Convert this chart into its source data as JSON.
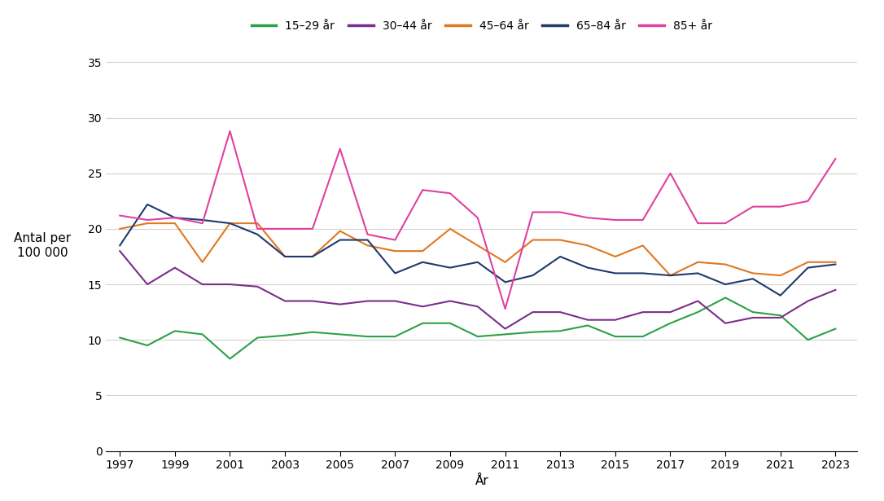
{
  "years": [
    1997,
    1998,
    1999,
    2000,
    2001,
    2002,
    2003,
    2004,
    2005,
    2006,
    2007,
    2008,
    2009,
    2010,
    2011,
    2012,
    2013,
    2014,
    2015,
    2016,
    2017,
    2018,
    2019,
    2020,
    2021,
    2022,
    2023
  ],
  "series": {
    "15–29 år": [
      10.2,
      9.5,
      10.8,
      10.5,
      8.3,
      10.2,
      10.4,
      10.7,
      10.5,
      10.3,
      10.3,
      11.5,
      11.5,
      10.3,
      10.5,
      10.7,
      10.8,
      11.3,
      10.3,
      10.3,
      11.5,
      12.5,
      13.8,
      12.5,
      12.2,
      10.0,
      11.0
    ],
    "30–44 år": [
      18.0,
      15.0,
      16.5,
      15.0,
      15.0,
      14.8,
      13.5,
      13.5,
      13.2,
      13.5,
      13.5,
      13.0,
      13.5,
      13.0,
      11.0,
      12.5,
      12.5,
      11.8,
      11.8,
      12.5,
      12.5,
      13.5,
      11.5,
      12.0,
      12.0,
      13.5,
      14.5
    ],
    "45–64 år": [
      20.0,
      20.5,
      20.5,
      17.0,
      20.5,
      20.5,
      17.5,
      17.5,
      19.8,
      18.5,
      18.0,
      18.0,
      20.0,
      18.5,
      17.0,
      19.0,
      19.0,
      18.5,
      17.5,
      18.5,
      15.8,
      17.0,
      16.8,
      16.0,
      15.8,
      17.0,
      17.0
    ],
    "65–84 år": [
      18.5,
      22.2,
      21.0,
      20.8,
      20.5,
      19.5,
      17.5,
      17.5,
      19.0,
      19.0,
      16.0,
      17.0,
      16.5,
      17.0,
      15.2,
      15.8,
      17.5,
      16.5,
      16.0,
      16.0,
      15.8,
      16.0,
      15.0,
      15.5,
      14.0,
      16.5,
      16.8
    ],
    "85+ år": [
      21.2,
      20.8,
      21.0,
      20.5,
      28.8,
      20.0,
      20.0,
      20.0,
      27.2,
      19.5,
      19.0,
      23.5,
      23.2,
      21.0,
      12.8,
      21.5,
      21.5,
      21.0,
      20.8,
      20.8,
      25.0,
      20.5,
      20.5,
      22.0,
      22.0,
      22.5,
      26.3
    ]
  },
  "colors": {
    "15–29 år": "#2ca048",
    "30–44 år": "#7b2d8b",
    "45–64 år": "#e07820",
    "65–84 år": "#1e3a6e",
    "85+ år": "#e040a0"
  },
  "xlabel": "År",
  "ylabel_line1": "Antal per",
  "ylabel_line2": "100 000",
  "yticks": [
    0,
    5,
    10,
    15,
    20,
    25,
    30,
    35
  ],
  "xticks": [
    1997,
    1999,
    2001,
    2003,
    2005,
    2007,
    2009,
    2011,
    2013,
    2015,
    2017,
    2019,
    2021,
    2023
  ],
  "ylim": [
    0,
    37
  ],
  "xlim": [
    1996.5,
    2023.8
  ],
  "background_color": "#ffffff",
  "grid_color": "#d3d3d3",
  "linewidth": 1.5
}
